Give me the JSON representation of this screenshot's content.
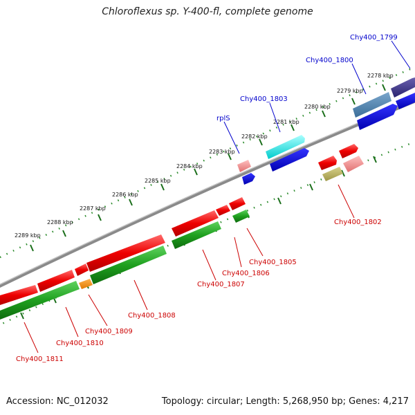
{
  "title": "Chloroflexus sp. Y-400-fl, complete genome",
  "footer": {
    "accession": "Accession: NC_012032",
    "stats": "Topology: circular; Length: 5,268,950 bp; Genes: 4,217"
  },
  "scale_labels": [
    "2278 kbp",
    "2279 kbp",
    "2280 kbp",
    "2281 kbp",
    "2282 kbp",
    "2283 kbp",
    "2284 kbp",
    "2285 kbp",
    "2286 kbp",
    "2287 kbp",
    "2288 kbp",
    "2289 kbp"
  ],
  "gene_labels": {
    "forward": [
      "Chy400_1799",
      "Chy400_1800",
      "Chy400_1803",
      "rplS"
    ],
    "reverse": [
      "Chy400_1802",
      "Chy400_1805",
      "Chy400_1806",
      "Chy400_1807",
      "Chy400_1808",
      "Chy400_1809",
      "Chy400_1810",
      "Chy400_1811"
    ]
  },
  "colors": {
    "forward_label": "#0000cc",
    "reverse_label": "#cc0000",
    "backbone": "#8a8a8a",
    "tick": "#2a8a2a"
  }
}
